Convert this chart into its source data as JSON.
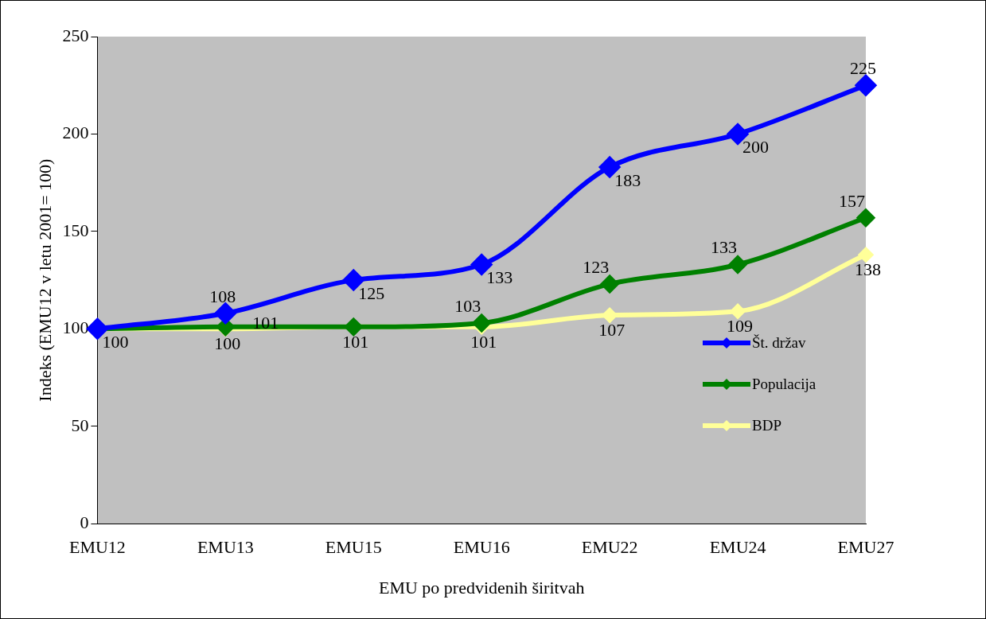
{
  "chart_data": {
    "type": "line",
    "xlabel": "EMU po predvidenih širitvah",
    "ylabel": "Indeks (EMU12 v letu 2001= 100)",
    "categories": [
      "EMU12",
      "EMU13",
      "EMU15",
      "EMU16",
      "EMU22",
      "EMU24",
      "EMU27"
    ],
    "series": [
      {
        "name": "Št. držav",
        "color": "#0000ff",
        "values": [
          100,
          108,
          125,
          133,
          183,
          200,
          225
        ],
        "value_labels": [
          "100",
          "108",
          "125",
          "133",
          "183",
          "200",
          "225"
        ]
      },
      {
        "name": "Populacija",
        "color": "#008000",
        "values": [
          100,
          101,
          101,
          103,
          123,
          133,
          157
        ],
        "value_labels": [
          null,
          "101",
          null,
          "103",
          "123",
          "133",
          "157"
        ]
      },
      {
        "name": "BDP",
        "color": "#ffff99",
        "values": [
          100,
          100,
          101,
          101,
          107,
          109,
          138
        ],
        "value_labels": [
          null,
          "100",
          "101",
          "101",
          "107",
          "109",
          "138"
        ]
      }
    ],
    "ylim": [
      0,
      250
    ],
    "yticks": [
      0,
      50,
      100,
      150,
      200,
      250
    ],
    "grid": false,
    "legend": "right",
    "marker": "diamond",
    "line_style": "solid"
  }
}
